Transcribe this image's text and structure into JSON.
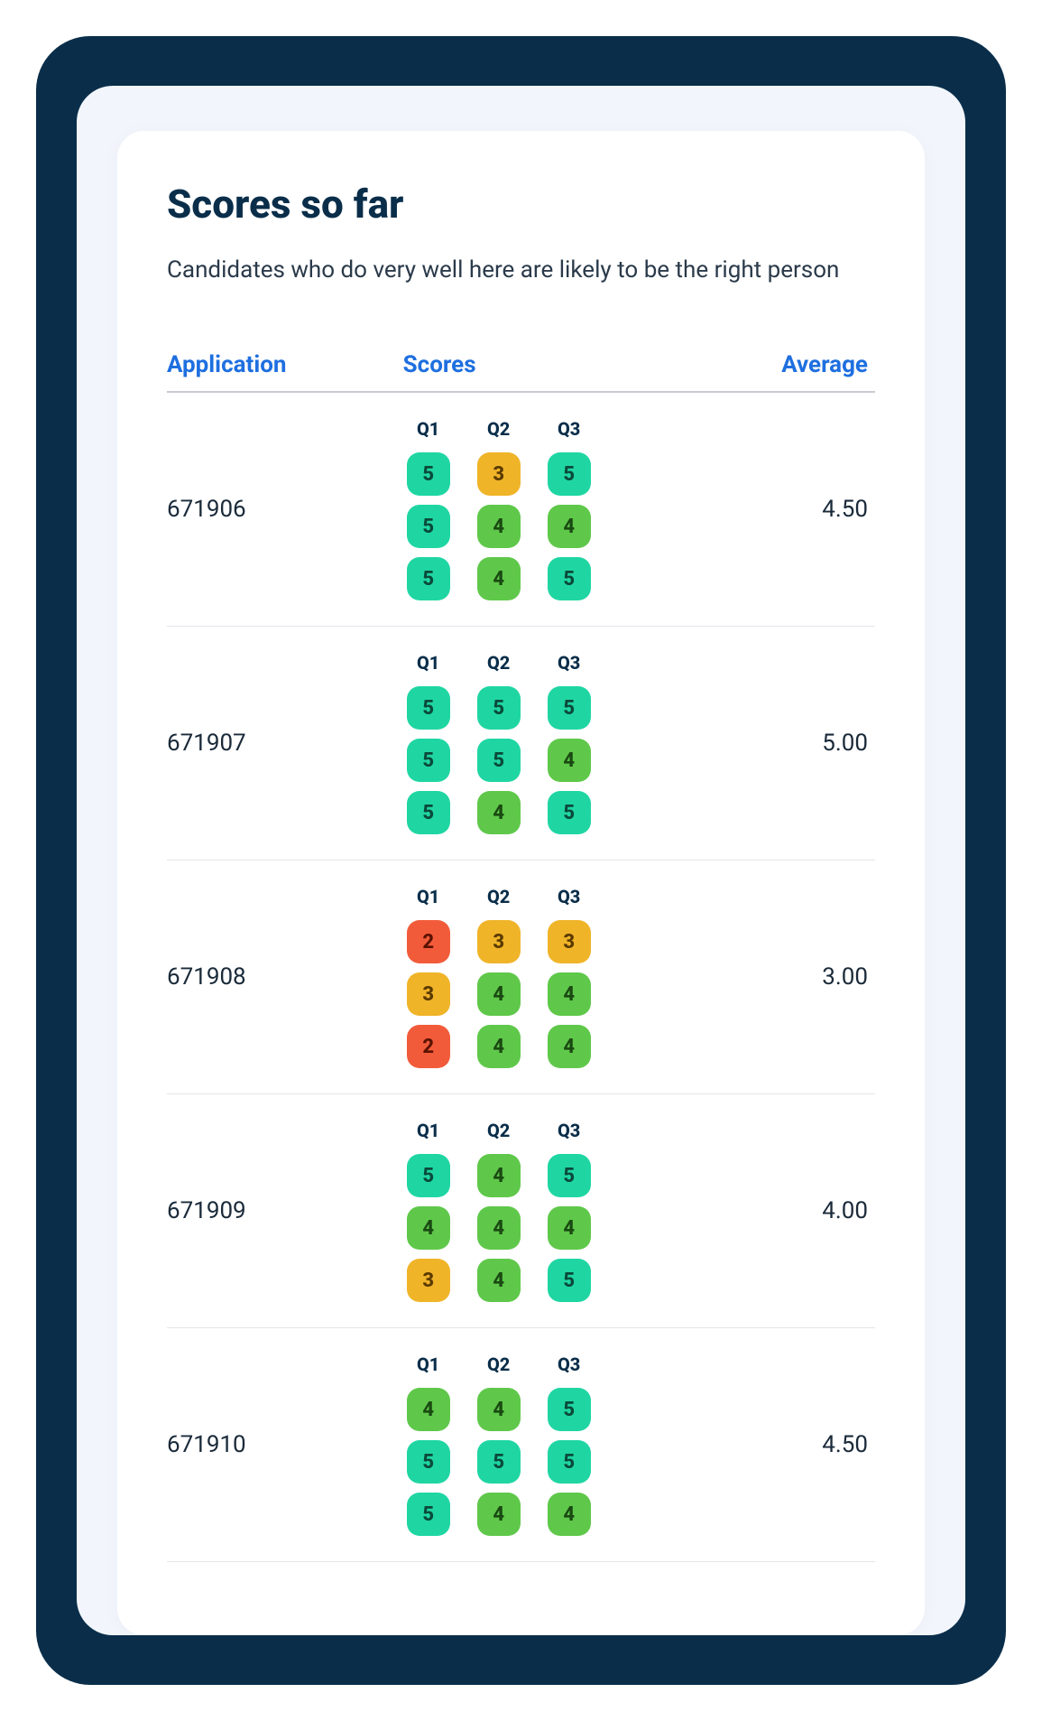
{
  "colors": {
    "frame_bg": "#0a2e4a",
    "panel_bg": "#f2f6fc",
    "card_bg": "#ffffff",
    "title_color": "#0a2e4a",
    "subtitle_color": "#2a3a4a",
    "header_color": "#1e6fe0",
    "header_border": "#c8ccd2",
    "row_border": "#e3e6ea",
    "text_color": "#1a2a3a"
  },
  "score_colors": {
    "5": {
      "bg": "#1fd6a3",
      "fg": "#0a4a3a"
    },
    "4": {
      "bg": "#5fc84a",
      "fg": "#1a4a12"
    },
    "3": {
      "bg": "#f0b429",
      "fg": "#5a3a00"
    },
    "2": {
      "bg": "#f25b3a",
      "fg": "#5a1200"
    }
  },
  "title": "Scores so far",
  "subtitle": "Candidates who do very well here are likely to be the right person",
  "columns": {
    "application": "Application",
    "scores": "Scores",
    "average": "Average"
  },
  "question_labels": [
    "Q1",
    "Q2",
    "Q3"
  ],
  "rows": [
    {
      "application": "671906",
      "average": "4.50",
      "scores": [
        [
          5,
          3,
          5
        ],
        [
          5,
          4,
          4
        ],
        [
          5,
          4,
          5
        ]
      ]
    },
    {
      "application": "671907",
      "average": "5.00",
      "scores": [
        [
          5,
          5,
          5
        ],
        [
          5,
          5,
          4
        ],
        [
          5,
          4,
          5
        ]
      ]
    },
    {
      "application": "671908",
      "average": "3.00",
      "scores": [
        [
          2,
          3,
          3
        ],
        [
          3,
          4,
          4
        ],
        [
          2,
          4,
          4
        ]
      ]
    },
    {
      "application": "671909",
      "average": "4.00",
      "scores": [
        [
          5,
          4,
          5
        ],
        [
          4,
          4,
          4
        ],
        [
          3,
          4,
          5
        ]
      ]
    },
    {
      "application": "671910",
      "average": "4.50",
      "scores": [
        [
          4,
          4,
          5
        ],
        [
          5,
          5,
          5
        ],
        [
          5,
          4,
          4
        ]
      ]
    }
  ]
}
